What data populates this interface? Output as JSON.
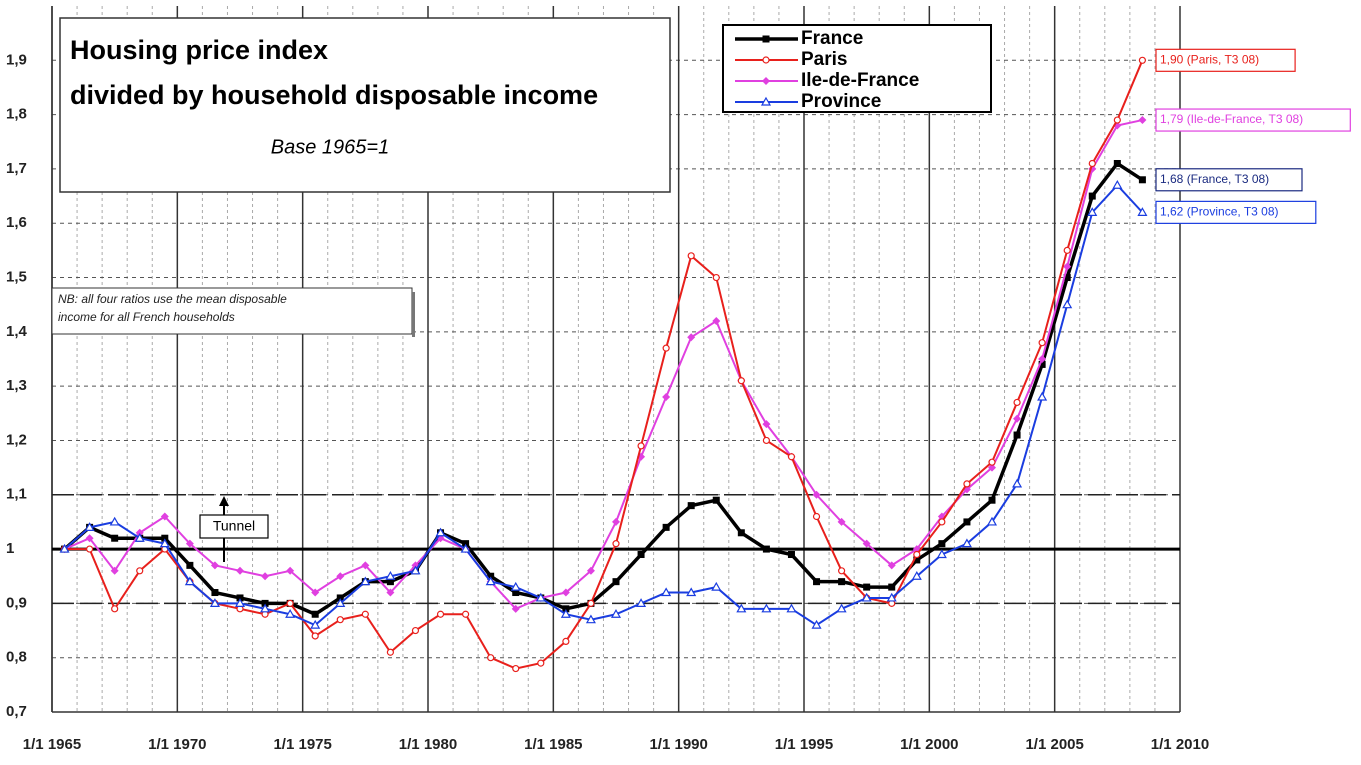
{
  "chart_data": {
    "type": "line",
    "title": [
      "Housing price index",
      "divided by household disposable income"
    ],
    "subtitle": "Base 1965=1",
    "note": [
      "NB: all four ratios use the mean disposable",
      "income for all French households"
    ],
    "tunnel_label": "Tunnel",
    "baseline": 1,
    "tunnel_bounds": [
      0.9,
      1.1
    ],
    "x": [
      1965.5,
      1966.5,
      1967.5,
      1968.5,
      1969.5,
      1970.5,
      1971.5,
      1972.5,
      1973.5,
      1974.5,
      1975.5,
      1976.5,
      1977.5,
      1978.5,
      1979.5,
      1980.5,
      1981.5,
      1982.5,
      1983.5,
      1984.5,
      1985.5,
      1986.5,
      1987.5,
      1988.5,
      1989.5,
      1990.5,
      1991.5,
      1992.5,
      1993.5,
      1994.5,
      1995.5,
      1996.5,
      1997.5,
      1998.5,
      1999.5,
      2000.5,
      2001.5,
      2002.5,
      2003.5,
      2004.5,
      2005.5,
      2006.5,
      2007.5,
      2008.5
    ],
    "series": [
      {
        "name": "France",
        "color": "#000000",
        "marker": "square",
        "end_label": "1,68 (France, T3 08)",
        "end_label_color": "#1a2a80",
        "values": [
          1.0,
          1.04,
          1.02,
          1.02,
          1.02,
          0.97,
          0.92,
          0.91,
          0.9,
          0.9,
          0.88,
          0.91,
          0.94,
          0.94,
          0.96,
          1.03,
          1.01,
          0.95,
          0.92,
          0.91,
          0.89,
          0.9,
          0.94,
          0.99,
          1.04,
          1.08,
          1.09,
          1.03,
          1.0,
          0.99,
          0.94,
          0.94,
          0.93,
          0.93,
          0.98,
          1.01,
          1.05,
          1.09,
          1.21,
          1.34,
          1.5,
          1.65,
          1.71,
          1.68
        ]
      },
      {
        "name": "Paris",
        "color": "#e8201c",
        "marker": "circle",
        "end_label": "1,90 (Paris, T3 08)",
        "end_label_color": "#e8201c",
        "values": [
          1.0,
          1.0,
          0.89,
          0.96,
          1.0,
          0.94,
          0.9,
          0.89,
          0.88,
          0.9,
          0.84,
          0.87,
          0.88,
          0.81,
          0.85,
          0.88,
          0.88,
          0.8,
          0.78,
          0.79,
          0.83,
          0.9,
          1.01,
          1.19,
          1.37,
          1.54,
          1.5,
          1.31,
          1.2,
          1.17,
          1.06,
          0.96,
          0.91,
          0.9,
          0.99,
          1.05,
          1.12,
          1.16,
          1.27,
          1.38,
          1.55,
          1.71,
          1.79,
          1.9
        ]
      },
      {
        "name": "Ile-de-France",
        "color": "#e040e0",
        "marker": "diamond",
        "end_label": "1,79 (Ile-de-France, T3 08)",
        "end_label_color": "#e040e0",
        "values": [
          1.0,
          1.02,
          0.96,
          1.03,
          1.06,
          1.01,
          0.97,
          0.96,
          0.95,
          0.96,
          0.92,
          0.95,
          0.97,
          0.92,
          0.97,
          1.02,
          1.0,
          0.94,
          0.89,
          0.91,
          0.92,
          0.96,
          1.05,
          1.17,
          1.28,
          1.39,
          1.42,
          1.31,
          1.23,
          1.17,
          1.1,
          1.05,
          1.01,
          0.97,
          1.0,
          1.06,
          1.11,
          1.15,
          1.24,
          1.35,
          1.52,
          1.7,
          1.78,
          1.79
        ]
      },
      {
        "name": "Province",
        "color": "#1a3de0",
        "marker": "triangle",
        "end_label": "1,62 (Province, T3 08)",
        "end_label_color": "#1a3de0",
        "values": [
          1.0,
          1.04,
          1.05,
          1.02,
          1.01,
          0.94,
          0.9,
          0.9,
          0.89,
          0.88,
          0.86,
          0.9,
          0.94,
          0.95,
          0.96,
          1.03,
          1.0,
          0.94,
          0.93,
          0.91,
          0.88,
          0.87,
          0.88,
          0.9,
          0.92,
          0.92,
          0.93,
          0.89,
          0.89,
          0.89,
          0.86,
          0.89,
          0.91,
          0.91,
          0.95,
          0.99,
          1.01,
          1.05,
          1.12,
          1.28,
          1.45,
          1.62,
          1.67,
          1.62
        ]
      }
    ],
    "xlim": [
      1965,
      2010
    ],
    "xticks": [
      {
        "value": 1965,
        "label": "1/1 1965"
      },
      {
        "value": 1970,
        "label": "1/1 1970"
      },
      {
        "value": 1975,
        "label": "1/1 1975"
      },
      {
        "value": 1980,
        "label": "1/1 1980"
      },
      {
        "value": 1985,
        "label": "1/1 1985"
      },
      {
        "value": 1990,
        "label": "1/1 1990"
      },
      {
        "value": 1995,
        "label": "1/1 1995"
      },
      {
        "value": 2000,
        "label": "1/1 2000"
      },
      {
        "value": 2005,
        "label": "1/1 2005"
      },
      {
        "value": 2010,
        "label": "1/1 2010"
      }
    ],
    "xminorticks": [
      1966,
      1967,
      1968,
      1969,
      1971,
      1972,
      1973,
      1974,
      1976,
      1977,
      1978,
      1979,
      1981,
      1982,
      1983,
      1984,
      1986,
      1987,
      1988,
      1989,
      1991,
      1992,
      1993,
      1994,
      1996,
      1997,
      1998,
      1999,
      2001,
      2002,
      2003,
      2004,
      2006,
      2007,
      2008,
      2009
    ],
    "ylim": [
      0.7,
      2.0
    ],
    "yticks": [
      {
        "value": 0.7,
        "label": "0,7"
      },
      {
        "value": 0.8,
        "label": "0,8"
      },
      {
        "value": 0.9,
        "label": "0,9"
      },
      1,
      {
        "value": 1.1,
        "label": "1,1"
      },
      {
        "value": 1.2,
        "label": "1,2"
      },
      {
        "value": 1.3,
        "label": "1,3"
      },
      {
        "value": 1.4,
        "label": "1,4"
      },
      {
        "value": 1.5,
        "label": "1,5"
      },
      {
        "value": 1.6,
        "label": "1,6"
      },
      {
        "value": 1.7,
        "label": "1,7"
      },
      {
        "value": 1.8,
        "label": "1,8"
      },
      {
        "value": 1.9,
        "label": "1,9"
      }
    ],
    "grid": true,
    "legend": "top"
  }
}
